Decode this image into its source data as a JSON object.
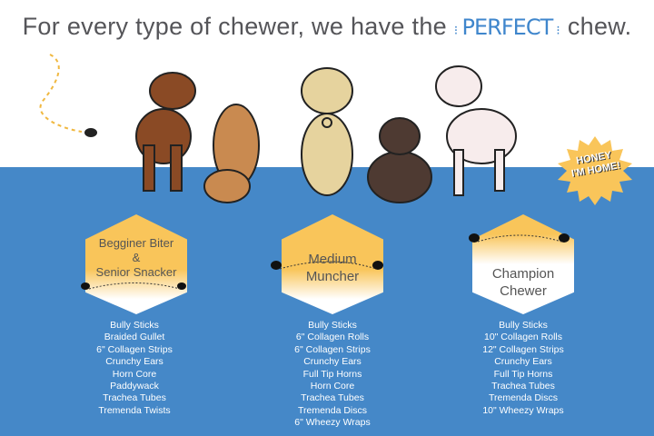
{
  "header": {
    "title_before": "For every type of chewer, we have the",
    "title_highlight": "PERFECT",
    "title_after": "chew."
  },
  "badge": {
    "line1": "HONEY",
    "line2": "I'M HOME!"
  },
  "colors": {
    "band": "#4588c8",
    "honey": "#f9c55a",
    "title": "#555559",
    "accent": "#3f86cc"
  },
  "categories": [
    {
      "label_lines": [
        "Begginer Biter",
        "&",
        "Senior Snacker"
      ],
      "items": [
        "Bully Sticks",
        "Braided Gullet",
        "6\" Collagen Strips",
        "Crunchy Ears",
        "Horn Core",
        "Paddywack",
        "Trachea Tubes",
        "Tremenda Twists"
      ]
    },
    {
      "label_lines": [
        "Medium",
        "Muncher"
      ],
      "items": [
        "Bully Sticks",
        "6\" Collagen Rolls",
        "6\" Collagen Strips",
        "Crunchy Ears",
        "Full Tip Horns",
        "Horn Core",
        "Trachea Tubes",
        "Tremenda Discs",
        "6\" Wheezy Wraps"
      ]
    },
    {
      "label_lines": [
        "Champion",
        "Chewer"
      ],
      "items": [
        "Bully Sticks",
        "10\" Collagen Rolls",
        "12\" Collagen Strips",
        "Crunchy Ears",
        "Full Tip Horns",
        "Trachea Tubes",
        "Tremenda Discs",
        "10\" Wheezy Wraps"
      ]
    }
  ]
}
